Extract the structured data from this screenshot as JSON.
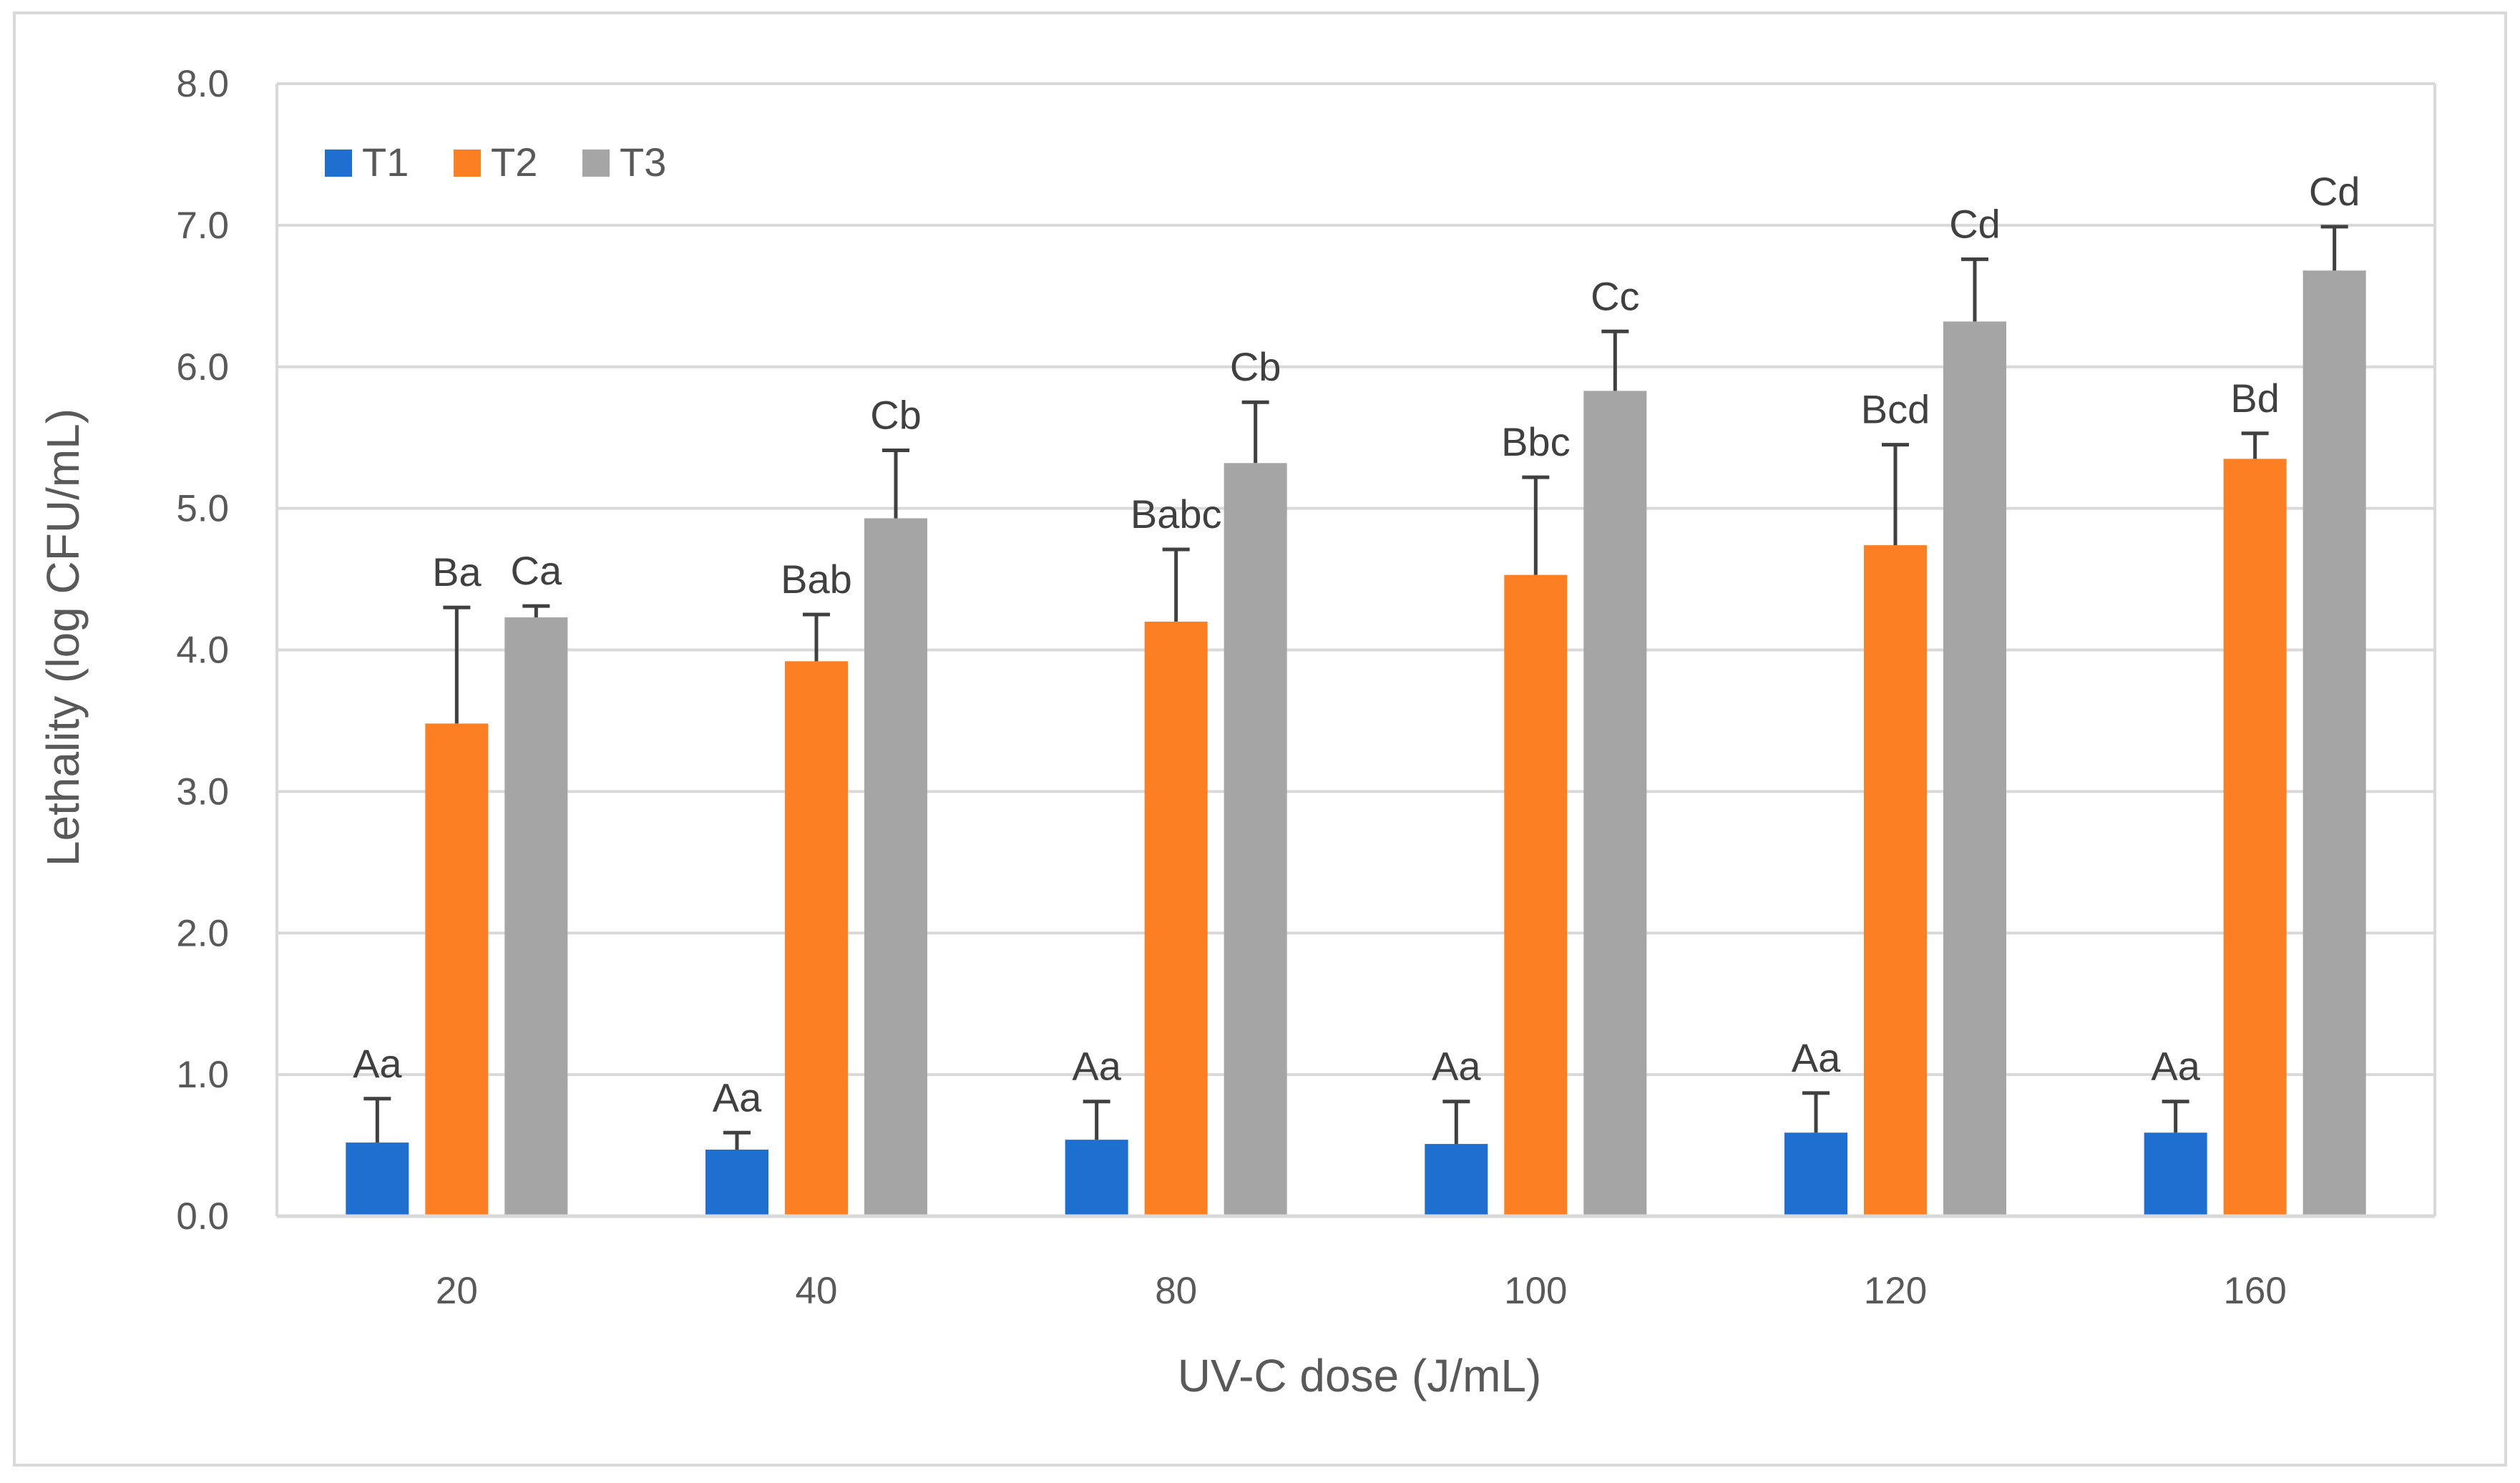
{
  "chart_data": {
    "type": "bar",
    "title": "",
    "xlabel": "UV-C dose (J/mL)",
    "ylabel": "Lethality  (log CFU/mL)",
    "ylim": [
      0,
      8
    ],
    "yticks": [
      "0.0",
      "1.0",
      "2.0",
      "3.0",
      "4.0",
      "5.0",
      "6.0",
      "7.0",
      "8.0"
    ],
    "grid": true,
    "legend_position": "top-left",
    "categories": [
      "20",
      "40",
      "80",
      "100",
      "120",
      "160"
    ],
    "series": [
      {
        "name": "T1",
        "color": "#1f6fd0",
        "values": [
          0.52,
          0.47,
          0.54,
          0.51,
          0.59,
          0.59
        ],
        "errors": [
          0.31,
          0.12,
          0.27,
          0.3,
          0.28,
          0.22
        ],
        "labels": [
          "Aa",
          "Aa",
          "Aa",
          "Aa",
          "Aa",
          "Aa"
        ]
      },
      {
        "name": "T2",
        "color": "#fd7f24",
        "values": [
          3.48,
          3.92,
          4.2,
          4.53,
          4.74,
          5.35
        ],
        "errors": [
          0.82,
          0.33,
          0.51,
          0.69,
          0.71,
          0.18
        ],
        "labels": [
          "Ba",
          "Bab",
          "Babc",
          "Bbc",
          "Bcd",
          "Bd"
        ]
      },
      {
        "name": "T3",
        "color": "#a5a5a5",
        "values": [
          4.23,
          4.93,
          5.32,
          5.83,
          6.32,
          6.68
        ],
        "errors": [
          0.08,
          0.48,
          0.43,
          0.42,
          0.44,
          0.31
        ],
        "labels": [
          "Ca",
          "Cb",
          "Cb",
          "Cc",
          "Cd",
          "Cd"
        ]
      }
    ]
  }
}
